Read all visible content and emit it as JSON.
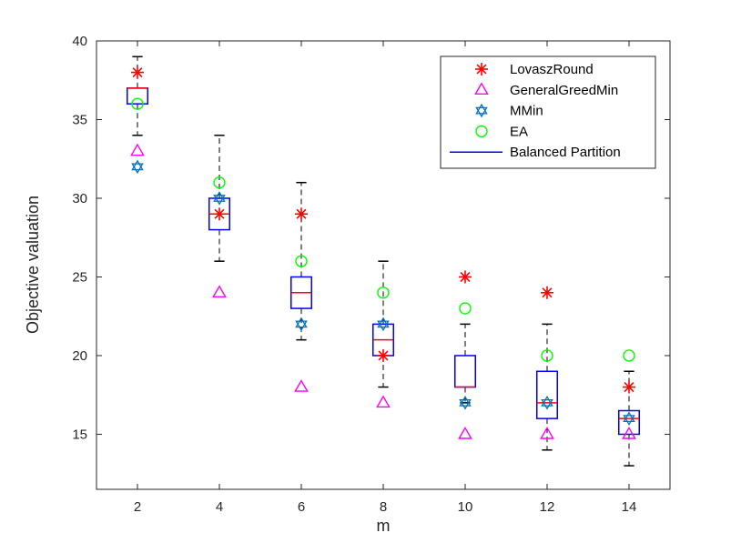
{
  "chart_data": {
    "type": "box",
    "xlabel": "m",
    "ylabel": "Objective valuation",
    "xlim": [
      1,
      15
    ],
    "ylim": [
      11.5,
      40
    ],
    "x_ticks": [
      2,
      4,
      6,
      8,
      10,
      12,
      14
    ],
    "y_ticks": [
      15,
      20,
      25,
      30,
      35,
      40
    ],
    "colors": {
      "box": "#0000ff",
      "median": "#ff0000",
      "whisker": "#000000",
      "LovaszRound": "#ff0000",
      "GeneralGreedMin": "#ff00ff",
      "MMin": "#0072bd",
      "EA": "#00ff00"
    },
    "boxes": [
      {
        "x": 2,
        "whisker_low": 34,
        "q1": 36,
        "median": 37,
        "q3": 37,
        "whisker_high": 39
      },
      {
        "x": 4,
        "whisker_low": 26,
        "q1": 28,
        "median": 29,
        "q3": 30,
        "whisker_high": 34
      },
      {
        "x": 6,
        "whisker_low": 21,
        "q1": 23,
        "median": 24,
        "q3": 25,
        "whisker_high": 31
      },
      {
        "x": 8,
        "whisker_low": 18,
        "q1": 20,
        "median": 21,
        "q3": 22,
        "whisker_high": 26
      },
      {
        "x": 10,
        "whisker_low": 17,
        "q1": 18,
        "median": 18,
        "q3": 20,
        "whisker_high": 22
      },
      {
        "x": 12,
        "whisker_low": 14,
        "q1": 16,
        "median": 17,
        "q3": 19,
        "whisker_high": 22
      },
      {
        "x": 14,
        "whisker_low": 13,
        "q1": 15,
        "median": 16,
        "q3": 16.5,
        "whisker_high": 19
      }
    ],
    "series": [
      {
        "name": "LovaszRound",
        "marker": "asterisk",
        "x": [
          2,
          4,
          6,
          8,
          10,
          12,
          14
        ],
        "values": [
          38,
          29,
          29,
          20,
          25,
          24,
          18
        ]
      },
      {
        "name": "GeneralGreedMin",
        "marker": "triangle",
        "x": [
          2,
          4,
          6,
          8,
          10,
          12,
          14
        ],
        "values": [
          33,
          24,
          18,
          17,
          15,
          15,
          15
        ]
      },
      {
        "name": "MMin",
        "marker": "hexagram",
        "x": [
          2,
          4,
          6,
          8,
          10,
          12,
          14
        ],
        "values": [
          32,
          30,
          22,
          22,
          17,
          17,
          16
        ]
      },
      {
        "name": "EA",
        "marker": "circle",
        "x": [
          2,
          4,
          6,
          8,
          10,
          12,
          14
        ],
        "values": [
          36,
          31,
          26,
          24,
          23,
          20,
          20
        ]
      }
    ],
    "legend": {
      "position": "top-right",
      "entries": [
        "LovaszRound",
        "GeneralGreedMin",
        "MMin",
        "EA",
        "Balanced Partition"
      ]
    }
  }
}
